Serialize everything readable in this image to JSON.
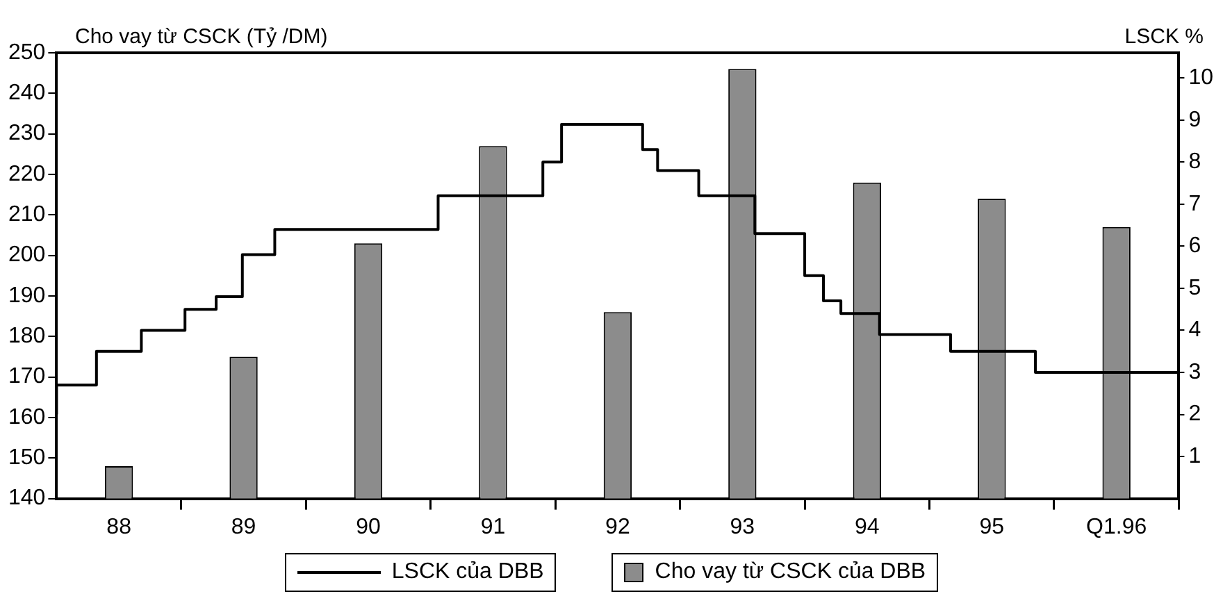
{
  "chart_data": {
    "type": "bar",
    "ylabel": "Cho vay từ CSCK (Tỷ /DM)",
    "y2label": "LSCK %",
    "xlim": [
      87.5,
      96.5
    ],
    "xticks": [
      88,
      {
        "value": 88.5,
        "label": null
      },
      89,
      {
        "value": 89.5,
        "label": null
      },
      90,
      {
        "value": 90.5,
        "label": null
      },
      91,
      {
        "value": 91.5,
        "label": null
      },
      92,
      {
        "value": 92.5,
        "label": null
      },
      93,
      {
        "value": 93.5,
        "label": null
      },
      94,
      {
        "value": 94.5,
        "label": null
      },
      95,
      {
        "value": 95.5,
        "label": null
      },
      {
        "value": 96,
        "label": "Q1.96"
      },
      {
        "value": 96.5,
        "label": null
      }
    ],
    "series": [
      {
        "name": "LSCK của DBB",
        "type": "step",
        "axis": "y2",
        "color": "#000000",
        "x": [
          87.5,
          87.82,
          88.18,
          88.53,
          88.78,
          88.99,
          89.25,
          90.56,
          91.4,
          91.55,
          92.2,
          92.32,
          92.65,
          93.1,
          93.5,
          93.65,
          93.79,
          94.1,
          94.67,
          95.35,
          95.59,
          96.5
        ],
        "values": [
          2.0,
          2.7,
          3.5,
          4.0,
          4.5,
          4.8,
          5.8,
          6.4,
          7.2,
          8.0,
          8.9,
          8.3,
          7.8,
          7.2,
          6.3,
          5.3,
          4.7,
          4.4,
          3.9,
          3.5,
          3.0,
          3.0
        ]
      },
      {
        "name": "Cho vay từ CSCK của DBB",
        "color": "#8c8c8c",
        "x": [
          88,
          89,
          90,
          91,
          92,
          93,
          94,
          95,
          96
        ],
        "values": [
          148,
          175,
          203,
          227,
          186,
          246,
          218,
          214,
          207
        ]
      }
    ],
    "ylim": [
      140,
      250
    ],
    "yticks": [
      140,
      150,
      160,
      170,
      180,
      190,
      200,
      210,
      220,
      230,
      240,
      250
    ],
    "y2lim": [
      0,
      10.6
    ],
    "y2ticks": [
      1,
      2,
      3,
      4,
      5,
      6,
      7,
      8,
      9,
      10
    ],
    "grid": false,
    "legend": "bottom",
    "marker": "none"
  }
}
